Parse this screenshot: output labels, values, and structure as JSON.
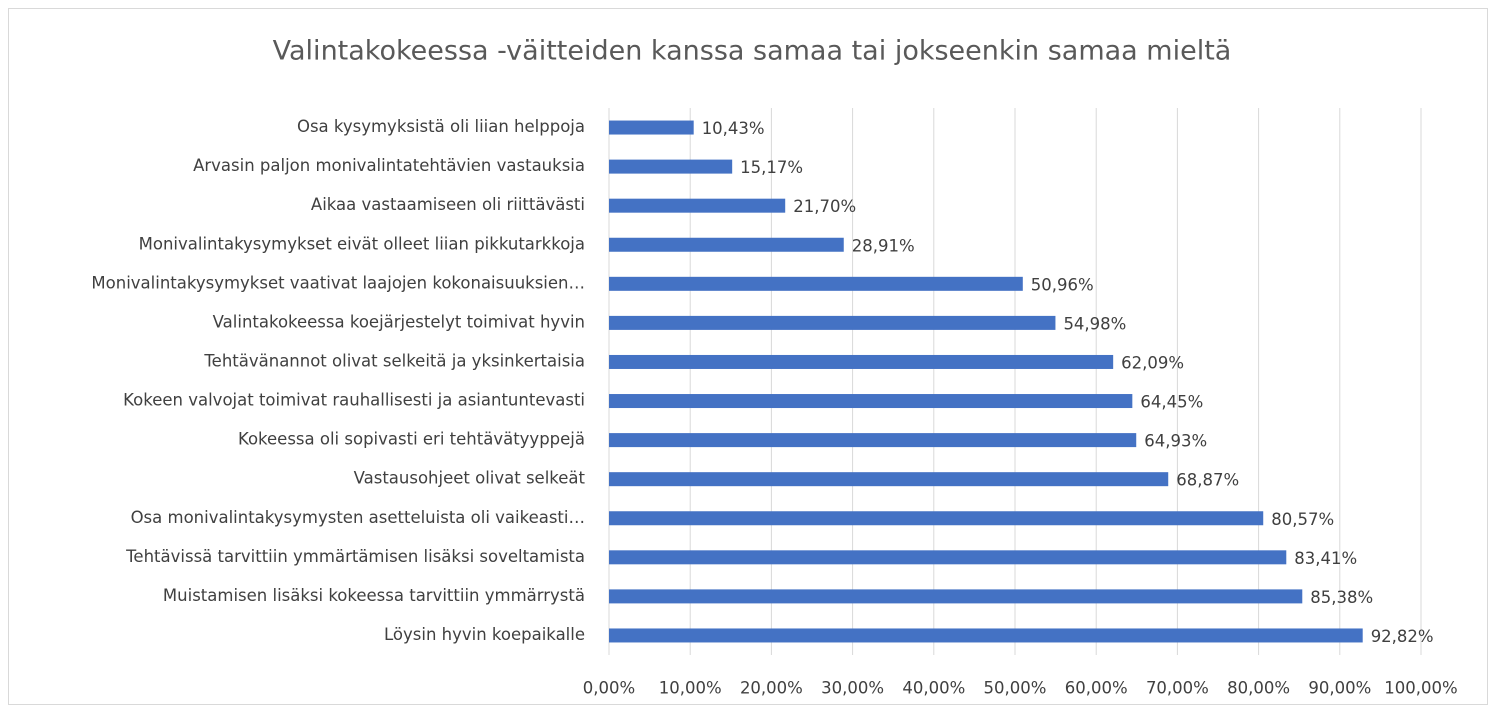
{
  "chart_data": {
    "type": "bar",
    "orientation": "horizontal",
    "title": "Valintakokeessa -väitteiden kanssa samaa tai jokseenkin samaa mieltä",
    "categories": [
      "Osa kysymyksistä oli liian helppoja",
      "Arvasin paljon monivalintatehtävien vastauksia",
      "Aikaa vastaamiseen oli riittävästi",
      "Monivalintakysymykset eivät olleet liian pikkutarkkoja",
      "Monivalintakysymykset vaativat laajojen kokonaisuuksien…",
      "Valintakokeessa koejärjestelyt toimivat hyvin",
      "Tehtävänannot olivat selkeitä ja yksinkertaisia",
      "Kokeen valvojat toimivat rauhallisesti ja asiantuntevasti",
      "Kokeessa oli sopivasti eri tehtävätyyppejä",
      "Vastausohjeet olivat selkeät",
      "Osa monivalintakysymysten asetteluista oli vaikeasti…",
      "Tehtävissä tarvittiin ymmärtämisen lisäksi soveltamista",
      "Muistamisen lisäksi kokeessa tarvittiin ymmärrystä",
      "Löysin hyvin koepaikalle"
    ],
    "values": [
      10.43,
      15.17,
      21.7,
      28.91,
      50.96,
      54.98,
      62.09,
      64.45,
      64.93,
      68.87,
      80.57,
      83.41,
      85.38,
      92.82
    ],
    "value_labels": [
      "10,43%",
      "15,17%",
      "21,70%",
      "28,91%",
      "50,96%",
      "54,98%",
      "62,09%",
      "64,45%",
      "64,93%",
      "68,87%",
      "80,57%",
      "83,41%",
      "85,38%",
      "92,82%"
    ],
    "color": "#4472c4",
    "xlim": [
      0,
      100
    ],
    "xticks": [
      {
        "value": 0,
        "label": "0,00%"
      },
      {
        "value": 10,
        "label": "10,00%"
      },
      {
        "value": 20,
        "label": "20,00%"
      },
      {
        "value": 30,
        "label": "30,00%"
      },
      {
        "value": 40,
        "label": "40,00%"
      },
      {
        "value": 50,
        "label": "50,00%"
      },
      {
        "value": 60,
        "label": "60,00%"
      },
      {
        "value": 70,
        "label": "70,00%"
      },
      {
        "value": 80,
        "label": "80,00%"
      },
      {
        "value": 90,
        "label": "90,00%"
      },
      {
        "value": 100,
        "label": "100,00%"
      }
    ],
    "grid": true
  }
}
